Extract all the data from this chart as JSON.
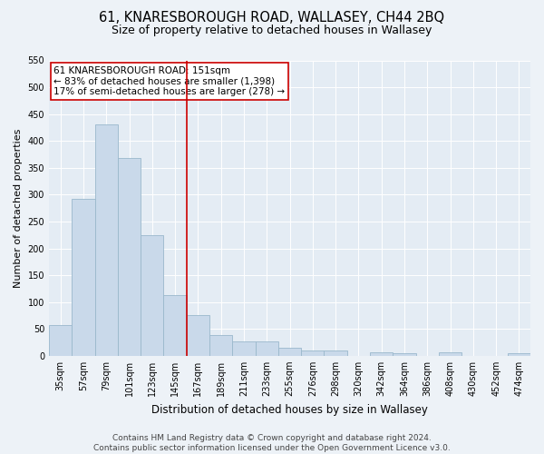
{
  "title": "61, KNARESBOROUGH ROAD, WALLASEY, CH44 2BQ",
  "subtitle": "Size of property relative to detached houses in Wallasey",
  "xlabel": "Distribution of detached houses by size in Wallasey",
  "ylabel": "Number of detached properties",
  "categories": [
    "35sqm",
    "57sqm",
    "79sqm",
    "101sqm",
    "123sqm",
    "145sqm",
    "167sqm",
    "189sqm",
    "211sqm",
    "233sqm",
    "255sqm",
    "276sqm",
    "298sqm",
    "320sqm",
    "342sqm",
    "364sqm",
    "386sqm",
    "408sqm",
    "430sqm",
    "452sqm",
    "474sqm"
  ],
  "values": [
    57,
    293,
    430,
    368,
    225,
    113,
    75,
    38,
    27,
    27,
    15,
    10,
    10,
    0,
    6,
    4,
    0,
    6,
    0,
    0,
    4
  ],
  "bar_color": "#c9d9ea",
  "bar_edge_color": "#9ab8cc",
  "vline_color": "#cc0000",
  "annotation_text_line1": "61 KNARESBOROUGH ROAD: 151sqm",
  "annotation_text_line2": "← 83% of detached houses are smaller (1,398)",
  "annotation_text_line3": "17% of semi-detached houses are larger (278) →",
  "annotation_box_color": "#ffffff",
  "annotation_box_edge_color": "#cc0000",
  "ylim": [
    0,
    550
  ],
  "yticks": [
    0,
    50,
    100,
    150,
    200,
    250,
    300,
    350,
    400,
    450,
    500,
    550
  ],
  "footer1": "Contains HM Land Registry data © Crown copyright and database right 2024.",
  "footer2": "Contains public sector information licensed under the Open Government Licence v3.0.",
  "bg_color": "#edf2f7",
  "plot_bg_color": "#e4ecf4",
  "title_fontsize": 10.5,
  "subtitle_fontsize": 9,
  "tick_fontsize": 7,
  "ylabel_fontsize": 8,
  "xlabel_fontsize": 8.5,
  "annotation_fontsize": 7.5,
  "footer_fontsize": 6.5,
  "grid_color": "#ffffff"
}
